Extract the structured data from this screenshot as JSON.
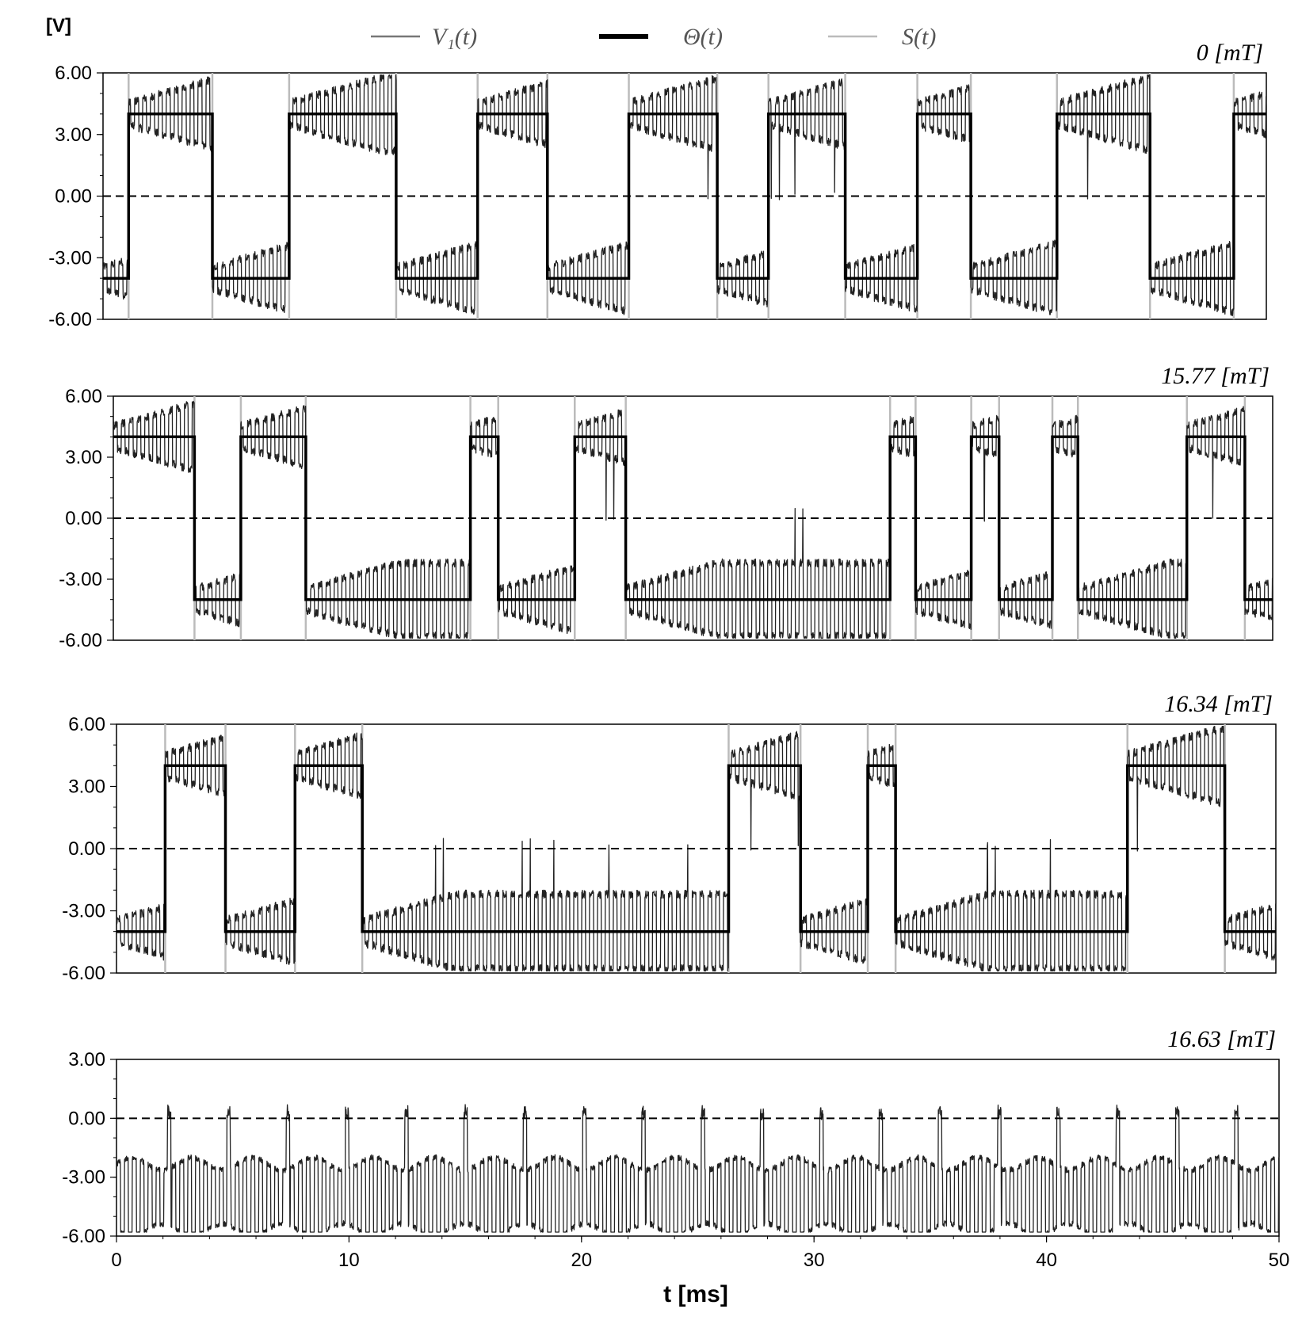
{
  "chart_data": {
    "type": "line",
    "y_unit_label": "[V]",
    "xlabel": "t [ms]",
    "xlim": [
      0,
      50
    ],
    "x_ticks": [
      "0",
      "10",
      "20",
      "30",
      "40",
      "50"
    ],
    "legend": [
      {
        "name": "V₁(t)",
        "color": "#777777",
        "style": "thin"
      },
      {
        "name": "Θ(t)",
        "color": "#000000",
        "style": "thick"
      },
      {
        "name": "S(t)",
        "color": "#bbbbbb",
        "style": "thin"
      }
    ],
    "colors": {
      "v1": "#222222",
      "theta": "#000000",
      "s": "#bbbbbb",
      "zero": "#000000"
    },
    "panels": [
      {
        "label": "0 [mT]",
        "ylim": [
          -6,
          6
        ],
        "y_ticks": [
          "6.00",
          "3.00",
          "0.00",
          "-3.00",
          "-6.00"
        ],
        "theta_level": 4,
        "theta_start": -4,
        "switch_times": [
          1.1,
          4.7,
          8.0,
          12.6,
          16.1,
          19.1,
          22.6,
          26.4,
          28.6,
          31.9,
          35.0,
          37.3,
          41.0,
          45.0,
          48.6
        ]
      },
      {
        "label": "15.77 [mT]",
        "ylim": [
          -6,
          6
        ],
        "y_ticks": [
          "6.00",
          "3.00",
          "0.00",
          "-3.00",
          "-6.00"
        ],
        "theta_level": 4,
        "theta_start": 4,
        "switch_times": [
          3.5,
          5.5,
          8.3,
          15.4,
          16.6,
          19.9,
          22.1,
          33.5,
          34.6,
          37.0,
          38.2,
          40.5,
          41.6,
          46.3,
          48.8
        ]
      },
      {
        "label": "16.34 [mT]",
        "ylim": [
          -6,
          6
        ],
        "y_ticks": [
          "6.00",
          "3.00",
          "0.00",
          "-3.00",
          "-6.00"
        ],
        "theta_level": 4,
        "theta_start": -4,
        "switch_times": [
          2.1,
          4.7,
          7.7,
          10.6,
          26.4,
          29.5,
          32.4,
          33.6,
          43.6,
          47.8
        ]
      },
      {
        "label": "16.63 [mT]",
        "ylim": [
          -6,
          3
        ],
        "y_ticks": [
          "3.00",
          "0.00",
          "-3.00",
          "-6.00"
        ],
        "theta_level": 4,
        "theta_start": -4,
        "switch_times": []
      }
    ]
  }
}
